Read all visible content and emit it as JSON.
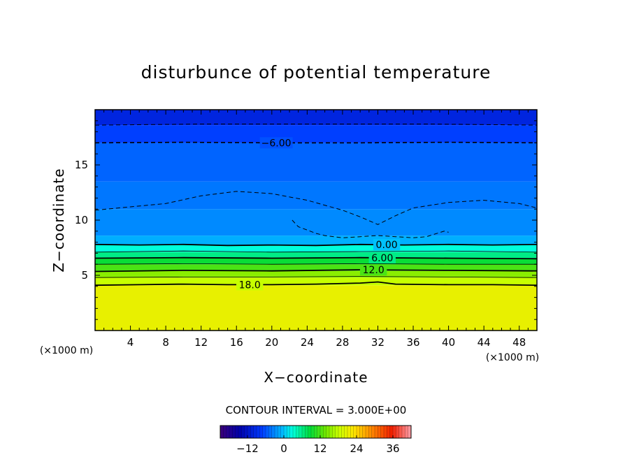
{
  "chart_data": {
    "type": "heatmap",
    "title": "disturbunce of potential temperature",
    "xlabel": "X−coordinate",
    "ylabel": "Z−coordinate",
    "x_unit": "(×1000 m)",
    "y_unit": "(×1000 m)",
    "xlim": [
      0,
      50
    ],
    "ylim": [
      0,
      20
    ],
    "x_ticks": [
      4,
      8,
      12,
      16,
      20,
      24,
      28,
      32,
      36,
      40,
      44,
      48
    ],
    "y_ticks": [
      5,
      10,
      15
    ],
    "contour_interval_text": "CONTOUR INTERVAL = 3.000E+00",
    "colorbar": {
      "min": -21,
      "max": 42,
      "ticks": [
        -12,
        0,
        12,
        24,
        36
      ],
      "tick_labels": [
        "−12",
        "0",
        "12",
        "24",
        "36"
      ]
    },
    "contours": [
      {
        "level": -6,
        "label": "−6.00",
        "style": "dashed",
        "points": [
          [
            0,
            17.0
          ],
          [
            10,
            17.05
          ],
          [
            20,
            17.0
          ],
          [
            30,
            17.0
          ],
          [
            40,
            17.05
          ],
          [
            50,
            17.0
          ]
        ]
      },
      {
        "level": -9,
        "style": "dashed",
        "points": [
          [
            0,
            18.6
          ],
          [
            12,
            18.7
          ],
          [
            25,
            18.7
          ],
          [
            38,
            18.7
          ],
          [
            50,
            18.6
          ]
        ]
      },
      {
        "level": -3,
        "style": "dashed",
        "points": [
          [
            0,
            10.9
          ],
          [
            4,
            11.2
          ],
          [
            8,
            11.5
          ],
          [
            12,
            12.2
          ],
          [
            16,
            12.6
          ],
          [
            20,
            12.4
          ],
          [
            24,
            11.8
          ],
          [
            28,
            10.9
          ],
          [
            30,
            10.3
          ],
          [
            32,
            9.6
          ],
          [
            34,
            10.4
          ],
          [
            36,
            11.1
          ],
          [
            40,
            11.6
          ],
          [
            44,
            11.8
          ],
          [
            48,
            11.5
          ],
          [
            50,
            11.1
          ]
        ]
      },
      {
        "level": -3,
        "style": "dashed",
        "points": [
          [
            22.3,
            10.0
          ],
          [
            23,
            9.4
          ],
          [
            24,
            9.1
          ],
          [
            25,
            8.8
          ],
          [
            26,
            8.6
          ],
          [
            28,
            8.4
          ],
          [
            30,
            8.5
          ],
          [
            32,
            8.6
          ],
          [
            34,
            8.5
          ],
          [
            36,
            8.4
          ],
          [
            37.5,
            8.5
          ],
          [
            39.5,
            9.0
          ],
          [
            40,
            8.9
          ]
        ]
      },
      {
        "level": 0,
        "label": "0.00",
        "style": "solid",
        "points": [
          [
            0,
            7.8
          ],
          [
            5,
            7.75
          ],
          [
            10,
            7.8
          ],
          [
            15,
            7.7
          ],
          [
            20,
            7.75
          ],
          [
            25,
            7.7
          ],
          [
            30,
            7.8
          ],
          [
            35,
            7.75
          ],
          [
            40,
            7.8
          ],
          [
            45,
            7.75
          ],
          [
            50,
            7.8
          ]
        ]
      },
      {
        "level": 3,
        "style": "thin",
        "points": [
          [
            0,
            7.1
          ],
          [
            10,
            7.2
          ],
          [
            20,
            7.1
          ],
          [
            30,
            7.15
          ],
          [
            40,
            7.2
          ],
          [
            50,
            7.1
          ]
        ]
      },
      {
        "level": 6,
        "label": "6.00",
        "style": "solid",
        "points": [
          [
            0,
            6.55
          ],
          [
            10,
            6.6
          ],
          [
            20,
            6.55
          ],
          [
            30,
            6.6
          ],
          [
            40,
            6.55
          ],
          [
            50,
            6.5
          ]
        ]
      },
      {
        "level": 9,
        "style": "thin",
        "points": [
          [
            0,
            6.0
          ],
          [
            10,
            6.05
          ],
          [
            20,
            6.0
          ],
          [
            30,
            6.05
          ],
          [
            40,
            6.0
          ],
          [
            50,
            6.0
          ]
        ]
      },
      {
        "level": 12,
        "label": "12.0",
        "style": "solid",
        "points": [
          [
            0,
            5.35
          ],
          [
            10,
            5.45
          ],
          [
            20,
            5.4
          ],
          [
            30,
            5.5
          ],
          [
            40,
            5.45
          ],
          [
            50,
            5.4
          ]
        ]
      },
      {
        "level": 15,
        "style": "thin",
        "points": [
          [
            0,
            4.8
          ],
          [
            10,
            4.85
          ],
          [
            20,
            4.85
          ],
          [
            30,
            4.9
          ],
          [
            40,
            4.85
          ],
          [
            50,
            4.8
          ]
        ]
      },
      {
        "level": 18,
        "label": "18.0",
        "style": "solid",
        "points": [
          [
            0,
            4.1
          ],
          [
            5,
            4.15
          ],
          [
            10,
            4.2
          ],
          [
            15,
            4.15
          ],
          [
            20,
            4.15
          ],
          [
            25,
            4.2
          ],
          [
            30,
            4.3
          ],
          [
            32,
            4.4
          ],
          [
            34,
            4.2
          ],
          [
            40,
            4.15
          ],
          [
            45,
            4.15
          ],
          [
            50,
            4.1
          ]
        ]
      }
    ],
    "field_bands": [
      {
        "from": 0,
        "to": 4.1,
        "value": 21
      },
      {
        "from": 4.1,
        "to": 4.8,
        "value": 18
      },
      {
        "from": 4.8,
        "to": 5.4,
        "value": 15
      },
      {
        "from": 5.4,
        "to": 6.0,
        "value": 12
      },
      {
        "from": 6.0,
        "to": 6.55,
        "value": 9
      },
      {
        "from": 6.55,
        "to": 7.1,
        "value": 6
      },
      {
        "from": 7.1,
        "to": 7.75,
        "value": 3
      },
      {
        "from": 7.75,
        "to": 8.6,
        "value": -1
      },
      {
        "from": 8.6,
        "to": 11.0,
        "value": -3
      },
      {
        "from": 11.0,
        "to": 13.5,
        "value": -4
      },
      {
        "from": 13.5,
        "to": 17.0,
        "value": -5
      },
      {
        "from": 17.0,
        "to": 18.6,
        "value": -7
      },
      {
        "from": 18.6,
        "to": 20.0,
        "value": -10
      }
    ]
  }
}
